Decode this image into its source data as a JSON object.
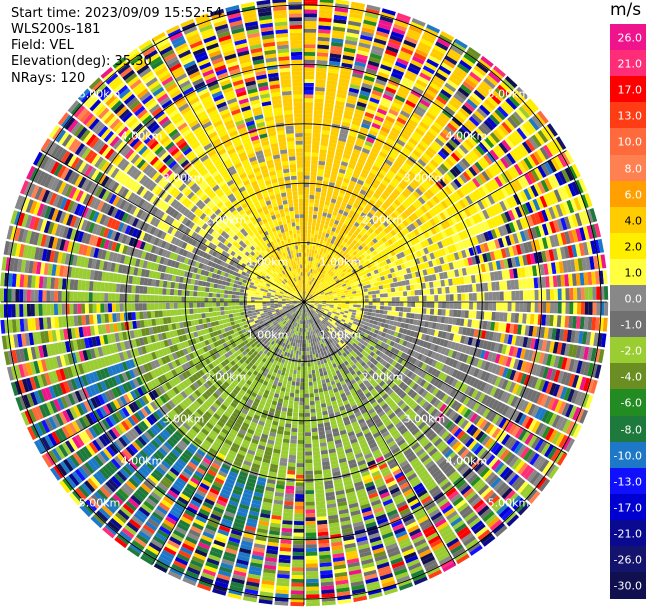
{
  "header": {
    "start_time": "Start time: 2023/09/09 15:52:54",
    "instrument": "WLS200s-181",
    "field": "Field: VEL",
    "elevation": "Elevation(deg): 35.30",
    "nrays": "NRays: 120"
  },
  "colorbar": {
    "unit": "m/s",
    "labels": [
      "26.0",
      "21.0",
      "17.0",
      "13.0",
      "10.0",
      "8.0",
      "6.0",
      "4.0",
      "2.0",
      "1.0",
      "0.0",
      "-1.0",
      "-2.0",
      "-4.0",
      "-6.0",
      "-8.0",
      "-10.0",
      "-13.0",
      "-17.0",
      "-21.0",
      "-26.0",
      "-30.0"
    ],
    "colors": [
      "#f0148c",
      "#ff2d78",
      "#ff0000",
      "#ff3c14",
      "#ff6a3c",
      "#ff8050",
      "#ffa000",
      "#ffcc00",
      "#ffee00",
      "#ffff40",
      "#888888",
      "#707070",
      "#9acd32",
      "#6b8e23",
      "#228b22",
      "#1e7a3c",
      "#1e78c8",
      "#1010ff",
      "#0000d0",
      "#0a0a90",
      "#14146e",
      "#101050"
    ]
  },
  "chart_data": {
    "type": "ppi",
    "title": "",
    "field": "VEL",
    "units": "m/s",
    "nrays": 120,
    "elevation_deg": 35.3,
    "range_ring_labels": [
      "1.00km",
      "2.00km",
      "3.00km",
      "4.00km",
      "5.00km"
    ],
    "range_rings_km": [
      1,
      2,
      3,
      4,
      5
    ],
    "max_range_km": 5.1,
    "colorbar_range": [
      -30,
      26
    ],
    "regions": [
      {
        "description": "north sector, positive velocities",
        "azimuth_range": [
          0,
          90
        ],
        "value_range": [
          2,
          10
        ]
      },
      {
        "description": "east sector, near zero",
        "azimuth_range": [
          80,
          120
        ],
        "value_range": [
          -1,
          1
        ]
      },
      {
        "description": "south-east sector, weak negative",
        "azimuth_range": [
          110,
          170
        ],
        "value_range": [
          -4,
          -2
        ]
      },
      {
        "description": "south-west sector, negative",
        "azimuth_range": [
          180,
          260
        ],
        "value_range": [
          -10,
          -4
        ]
      },
      {
        "description": "north-west sector, weak negative",
        "azimuth_range": [
          270,
          340
        ],
        "value_range": [
          -6,
          -2
        ]
      },
      {
        "description": "center core",
        "azimuth_range": [
          0,
          360
        ],
        "value_range": [
          0,
          6
        ]
      }
    ]
  }
}
